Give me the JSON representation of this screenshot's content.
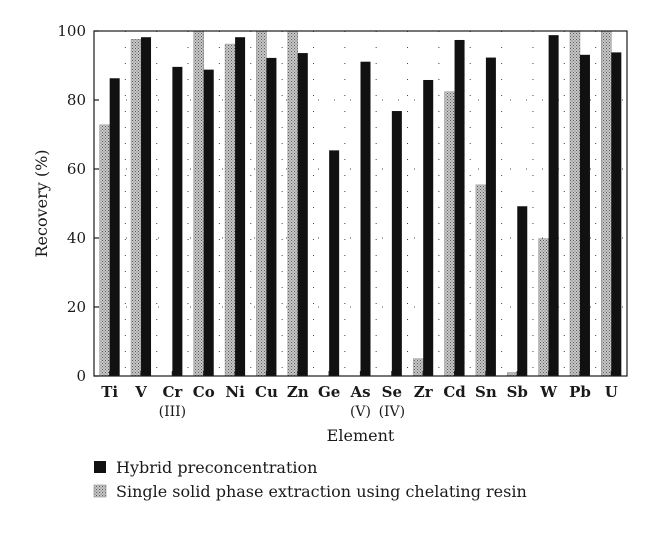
{
  "chart_data": {
    "type": "bar",
    "xlabel": "Element",
    "ylabel": "Recovery (%)",
    "ylim": [
      0,
      100
    ],
    "yticks": [
      0,
      20,
      40,
      60,
      80,
      100
    ],
    "grid": "dotted",
    "legend_position": "bottom",
    "categories": [
      {
        "label": "Ti",
        "sub": ""
      },
      {
        "label": "V",
        "sub": ""
      },
      {
        "label": "Cr",
        "sub": "(III)"
      },
      {
        "label": "Co",
        "sub": ""
      },
      {
        "label": "Ni",
        "sub": ""
      },
      {
        "label": "Cu",
        "sub": ""
      },
      {
        "label": "Zn",
        "sub": ""
      },
      {
        "label": "Ge",
        "sub": ""
      },
      {
        "label": "As",
        "sub": "(V)"
      },
      {
        "label": "Se",
        "sub": "(IV)"
      },
      {
        "label": "Zr",
        "sub": ""
      },
      {
        "label": "Cd",
        "sub": ""
      },
      {
        "label": "Sn",
        "sub": ""
      },
      {
        "label": "Sb",
        "sub": ""
      },
      {
        "label": "W",
        "sub": ""
      },
      {
        "label": "Pb",
        "sub": ""
      },
      {
        "label": "U",
        "sub": ""
      }
    ],
    "series": [
      {
        "name": "Single solid phase extraction using chelating resin",
        "pattern": "dotted-gray",
        "values": [
          72.8,
          97.6,
          null,
          100,
          96.2,
          100,
          100,
          null,
          null,
          null,
          5,
          82.4,
          55.4,
          1,
          39.8,
          100,
          100
        ]
      },
      {
        "name": "Hybrid preconcentration",
        "pattern": "solid-black",
        "values": [
          86.3,
          98.2,
          89.6,
          88.8,
          98.2,
          92.2,
          93.6,
          65.4,
          91.1,
          76.8,
          85.8,
          97.4,
          92.3,
          49.2,
          98.8,
          93.1,
          93.8
        ]
      }
    ],
    "legend": [
      {
        "label": "Hybrid preconcentration",
        "pattern": "solid-black"
      },
      {
        "label": "Single solid phase extraction using chelating resin",
        "pattern": "dotted-gray"
      }
    ],
    "colors": {
      "hybrid": "#111111",
      "resin_base": "#c8c8c8",
      "resin_dot": "#5a5a5a",
      "grid": "#444444"
    }
  }
}
